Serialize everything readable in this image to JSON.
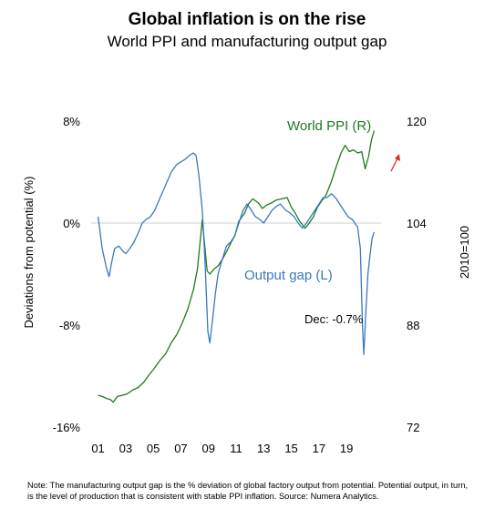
{
  "chart_data": {
    "type": "line",
    "title": "Global inflation is on the rise",
    "subtitle": "World PPI and manufacturing output gap",
    "y_left": {
      "label": "Deviations from potential (%)",
      "ticks": [
        "8%",
        "0%",
        "-8%",
        "-16%"
      ],
      "ylim": [
        -16,
        8
      ]
    },
    "y_right": {
      "label": "2010=100",
      "ticks": [
        "120",
        "104",
        "88",
        "72"
      ],
      "ylim": [
        72,
        120
      ]
    },
    "x_ticks": [
      "01",
      "03",
      "05",
      "07",
      "09",
      "11",
      "13",
      "15",
      "17",
      "19"
    ],
    "xlim": [
      2000.5,
      2021.5
    ],
    "grid": false,
    "zero_line": true,
    "series": [
      {
        "name": "World PPI (R)",
        "axis": "right",
        "color": "#1e7a1e",
        "points": [
          [
            2001.0,
            77.0
          ],
          [
            2001.3,
            76.8
          ],
          [
            2001.6,
            76.5
          ],
          [
            2001.9,
            76.3
          ],
          [
            2002.1,
            75.9
          ],
          [
            2002.4,
            76.8
          ],
          [
            2002.8,
            77.0
          ],
          [
            2003.1,
            77.2
          ],
          [
            2003.5,
            77.8
          ],
          [
            2003.9,
            78.2
          ],
          [
            2004.3,
            79.0
          ],
          [
            2004.7,
            80.2
          ],
          [
            2005.1,
            81.3
          ],
          [
            2005.5,
            82.5
          ],
          [
            2005.9,
            83.5
          ],
          [
            2006.3,
            85.2
          ],
          [
            2006.7,
            86.5
          ],
          [
            2007.1,
            88.3
          ],
          [
            2007.5,
            90.5
          ],
          [
            2007.9,
            93.5
          ],
          [
            2008.2,
            96.8
          ],
          [
            2008.55,
            104.5
          ],
          [
            2008.75,
            100.0
          ],
          [
            2008.9,
            96.5
          ],
          [
            2009.1,
            96.0
          ],
          [
            2009.4,
            96.8
          ],
          [
            2009.7,
            97.3
          ],
          [
            2010.0,
            98.3
          ],
          [
            2010.3,
            99.5
          ],
          [
            2010.6,
            100.8
          ],
          [
            2010.9,
            102.0
          ],
          [
            2011.2,
            104.3
          ],
          [
            2011.6,
            105.5
          ],
          [
            2011.9,
            107.0
          ],
          [
            2012.2,
            107.8
          ],
          [
            2012.6,
            107.2
          ],
          [
            2012.9,
            106.3
          ],
          [
            2013.2,
            106.8
          ],
          [
            2013.6,
            107.2
          ],
          [
            2013.9,
            107.6
          ],
          [
            2014.3,
            107.8
          ],
          [
            2014.7,
            108.0
          ],
          [
            2015.0,
            106.5
          ],
          [
            2015.3,
            105.5
          ],
          [
            2015.6,
            104.3
          ],
          [
            2016.0,
            103.2
          ],
          [
            2016.3,
            104.0
          ],
          [
            2016.6,
            105.0
          ],
          [
            2016.9,
            106.5
          ],
          [
            2017.2,
            107.5
          ],
          [
            2017.5,
            108.3
          ],
          [
            2017.9,
            110.5
          ],
          [
            2018.2,
            112.5
          ],
          [
            2018.6,
            115.0
          ],
          [
            2018.9,
            116.2
          ],
          [
            2019.2,
            115.2
          ],
          [
            2019.5,
            115.5
          ],
          [
            2019.8,
            115.0
          ],
          [
            2020.1,
            115.2
          ],
          [
            2020.35,
            112.5
          ],
          [
            2020.6,
            114.5
          ],
          [
            2020.8,
            117.0
          ],
          [
            2021.0,
            118.5
          ]
        ]
      },
      {
        "name": "Output gap (L)",
        "axis": "left",
        "color": "#3a78c0",
        "points": [
          [
            2001.0,
            0.5
          ],
          [
            2001.3,
            -2.0
          ],
          [
            2001.6,
            -3.5
          ],
          [
            2001.8,
            -4.2
          ],
          [
            2002.0,
            -3.0
          ],
          [
            2002.2,
            -2.0
          ],
          [
            2002.5,
            -1.8
          ],
          [
            2002.8,
            -2.2
          ],
          [
            2003.0,
            -2.4
          ],
          [
            2003.3,
            -2.0
          ],
          [
            2003.6,
            -1.5
          ],
          [
            2003.9,
            -0.8
          ],
          [
            2004.2,
            0.0
          ],
          [
            2004.5,
            0.3
          ],
          [
            2004.8,
            0.5
          ],
          [
            2005.1,
            1.0
          ],
          [
            2005.5,
            2.0
          ],
          [
            2005.9,
            3.0
          ],
          [
            2006.3,
            4.0
          ],
          [
            2006.7,
            4.6
          ],
          [
            2007.0,
            4.8
          ],
          [
            2007.3,
            5.0
          ],
          [
            2007.6,
            5.3
          ],
          [
            2007.9,
            5.5
          ],
          [
            2008.1,
            5.3
          ],
          [
            2008.3,
            3.8
          ],
          [
            2008.55,
            1.0
          ],
          [
            2008.75,
            -3.0
          ],
          [
            2008.95,
            -8.5
          ],
          [
            2009.1,
            -9.4
          ],
          [
            2009.3,
            -7.5
          ],
          [
            2009.5,
            -5.5
          ],
          [
            2009.7,
            -4.0
          ],
          [
            2009.9,
            -3.2
          ],
          [
            2010.1,
            -2.5
          ],
          [
            2010.3,
            -1.8
          ],
          [
            2010.6,
            -1.5
          ],
          [
            2010.9,
            -1.0
          ],
          [
            2011.2,
            0.0
          ],
          [
            2011.5,
            1.0
          ],
          [
            2011.8,
            1.5
          ],
          [
            2012.1,
            1.0
          ],
          [
            2012.4,
            0.5
          ],
          [
            2012.7,
            0.3
          ],
          [
            2013.0,
            0.0
          ],
          [
            2013.3,
            0.5
          ],
          [
            2013.6,
            1.0
          ],
          [
            2013.9,
            1.3
          ],
          [
            2014.2,
            1.5
          ],
          [
            2014.6,
            1.0
          ],
          [
            2014.9,
            0.8
          ],
          [
            2015.2,
            0.5
          ],
          [
            2015.5,
            0.0
          ],
          [
            2015.8,
            -0.4
          ],
          [
            2016.1,
            0.0
          ],
          [
            2016.4,
            0.5
          ],
          [
            2016.7,
            1.0
          ],
          [
            2017.0,
            1.5
          ],
          [
            2017.3,
            2.0
          ],
          [
            2017.6,
            2.0
          ],
          [
            2017.9,
            2.3
          ],
          [
            2018.2,
            2.0
          ],
          [
            2018.5,
            1.5
          ],
          [
            2018.8,
            1.0
          ],
          [
            2019.1,
            0.5
          ],
          [
            2019.4,
            0.3
          ],
          [
            2019.6,
            0.0
          ],
          [
            2019.8,
            -0.3
          ],
          [
            2020.0,
            -2.0
          ],
          [
            2020.15,
            -8.0
          ],
          [
            2020.25,
            -10.3
          ],
          [
            2020.4,
            -7.0
          ],
          [
            2020.55,
            -4.0
          ],
          [
            2020.7,
            -2.5
          ],
          [
            2020.85,
            -1.2
          ],
          [
            2021.0,
            -0.7
          ]
        ]
      }
    ],
    "annotations": {
      "ppi_label": "World PPI (R)",
      "gap_label": "Output gap (L)",
      "dec_value": "Dec:  -0.7%",
      "arrow_color": "#d93030"
    },
    "note": "Note: The manufacturing output gap is the % deviation of global factory output from potential. Potential output, in turn, is the level of production that is consistent with stable PPI inflation. Source: Numera Analytics."
  }
}
